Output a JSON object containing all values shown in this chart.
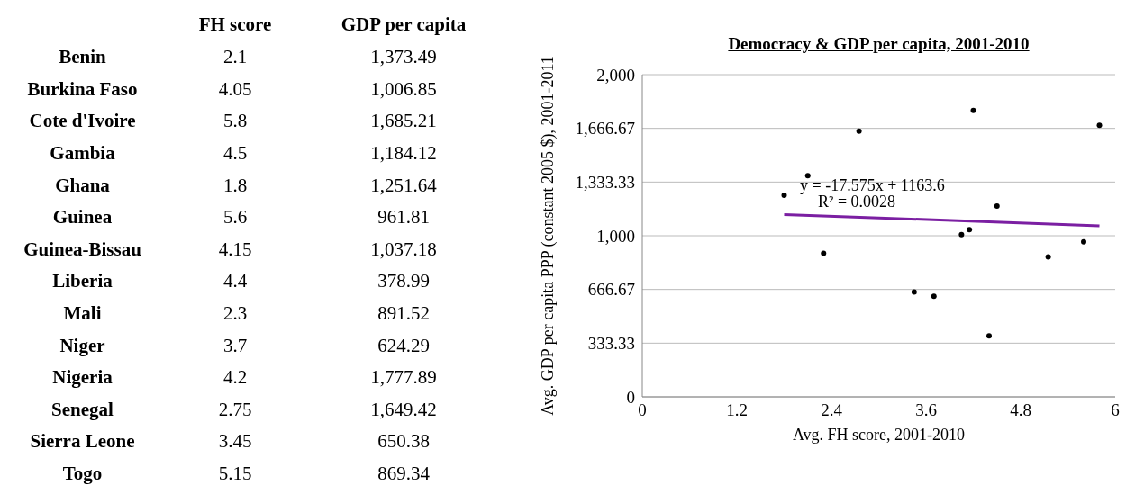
{
  "chart_data": [
    {
      "type": "other",
      "categories": [
        "Benin",
        "Burkina Faso",
        "Cote d'Ivoire",
        "Gambia",
        "Ghana",
        "Guinea",
        "Guinea-Bissau",
        "Liberia",
        "Mali",
        "Niger",
        "Nigeria",
        "Senegal",
        "Sierra Leone",
        "Togo"
      ],
      "series": [
        {
          "name": "FH score",
          "values": [
            2.1,
            4.05,
            5.8,
            4.5,
            1.8,
            5.6,
            4.15,
            4.4,
            2.3,
            3.7,
            4.2,
            2.75,
            3.45,
            5.15
          ]
        },
        {
          "name": "GDP per capita",
          "values": [
            1373.49,
            1006.85,
            1685.21,
            1184.12,
            1251.64,
            961.81,
            1037.18,
            378.99,
            891.52,
            624.29,
            1777.89,
            1649.42,
            650.38,
            869.34
          ],
          "value_labels": [
            "1,373.49",
            "1,006.85",
            "1,685.21",
            "1,184.12",
            "1,251.64",
            "961.81",
            "1,037.18",
            "378.99",
            "891.52",
            "624.29",
            "1,777.89",
            "1,649.42",
            "650.38",
            "869.34"
          ]
        }
      ],
      "data_labels": true
    },
    {
      "type": "scatter",
      "title": "Democracy & GDP per capita, 2001-2010",
      "xlabel": "Avg. FH score, 2001-2010",
      "ylabel": "Avg. GDP per capita PPP (constant 2005 $), 2001-2011",
      "series": [
        {
          "type": "scatter",
          "color": "#000000",
          "marker": "circle",
          "x": [
            2.1,
            4.05,
            5.8,
            4.5,
            1.8,
            5.6,
            4.15,
            4.4,
            2.3,
            3.7,
            4.2,
            2.75,
            3.45,
            5.15
          ],
          "values": [
            1373.49,
            1006.85,
            1685.21,
            1184.12,
            1251.64,
            961.81,
            1037.18,
            378.99,
            891.52,
            624.29,
            1777.89,
            1649.42,
            650.38,
            869.34
          ]
        },
        {
          "type": "line",
          "color": "#7b1fa2",
          "marker": "none",
          "x": [
            1.8,
            5.8
          ],
          "values": [
            1131.96,
            1061.66
          ]
        }
      ],
      "xlim": [
        0,
        6
      ],
      "xticks": [
        0,
        1.2,
        2.4,
        3.6,
        4.8,
        6
      ],
      "ylim": [
        0,
        2000
      ],
      "yticks": [
        0,
        {
          "value": 333.33,
          "label": "333.33"
        },
        {
          "value": 666.67,
          "label": "666.67"
        },
        {
          "value": 1000,
          "label": "1,000"
        },
        {
          "value": 1333.33,
          "label": "1,333.33"
        },
        {
          "value": 1666.67,
          "label": "1,666.67"
        },
        {
          "value": 2000,
          "label": "2,000"
        }
      ],
      "grid": "y",
      "legend": false,
      "annotations": [
        "y = -17.575x + 1163.6",
        "R² = 0.0028"
      ]
    }
  ]
}
